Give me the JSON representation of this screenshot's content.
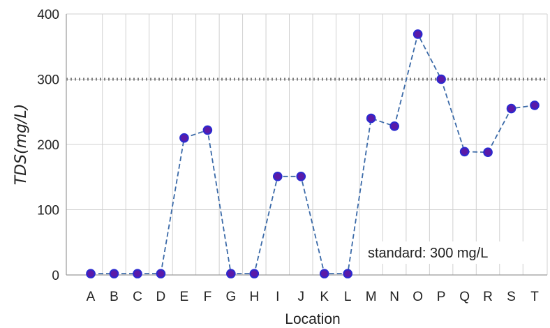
{
  "chart_data": {
    "type": "line",
    "title": "",
    "xlabel": "Location",
    "ylabel": "TDS(mg/L)",
    "ylim": [
      0,
      400
    ],
    "yticks": [
      0,
      100,
      200,
      300,
      400
    ],
    "grid": true,
    "categories": [
      "A",
      "B",
      "C",
      "D",
      "E",
      "F",
      "G",
      "H",
      "I",
      "J",
      "K",
      "L",
      "M",
      "N",
      "O",
      "P",
      "Q",
      "R",
      "S",
      "T"
    ],
    "series": [
      {
        "values": [
          2,
          2,
          2,
          2,
          210,
          222,
          2,
          2,
          151,
          151,
          2,
          2,
          240,
          228,
          369,
          300,
          189,
          188,
          255,
          260
        ],
        "line_color": "#3b6aa8",
        "line_style": "dashed",
        "marker_fill": "#5a1aa8",
        "marker_edge": "#2a2ad0"
      }
    ],
    "reference_line": {
      "value": 300,
      "color": "#7f7f7f",
      "style": "dotted"
    },
    "annotation": "standard: 300 mg/L"
  }
}
